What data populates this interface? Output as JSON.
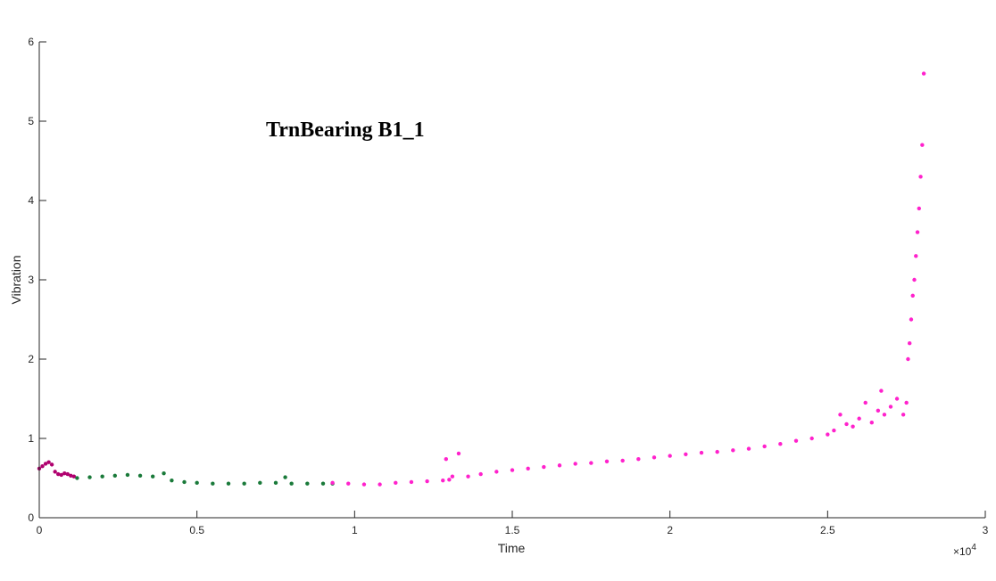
{
  "chart_data": {
    "type": "scatter",
    "title": "TrnBearing B1_1",
    "xlabel": "Time",
    "ylabel": "Vibration",
    "x_multiplier": "×10",
    "x_multiplier_exp": "4",
    "xlim": [
      0,
      30000
    ],
    "ylim": [
      0,
      6
    ],
    "grid": false,
    "x_ticks": [
      0,
      5000,
      10000,
      15000,
      20000,
      25000,
      30000
    ],
    "x_tick_labels": [
      "0",
      "0.5",
      "1",
      "1.5",
      "2",
      "2.5",
      "3"
    ],
    "y_ticks": [
      0,
      1,
      2,
      3,
      4,
      5,
      6
    ],
    "y_tick_labels": [
      "0",
      "1",
      "2",
      "3",
      "4",
      "5",
      "6"
    ],
    "colors": {
      "segment_early": "#b0006e",
      "segment_healthy": "#1a7a3a",
      "segment_degrading": "#ff22cc"
    },
    "series": [
      {
        "color_key": "segment_early",
        "x": [
          0,
          100,
          200,
          300,
          400,
          500,
          600,
          700,
          800,
          900,
          1000,
          1100
        ],
        "y": [
          0.62,
          0.65,
          0.68,
          0.7,
          0.67,
          0.58,
          0.55,
          0.54,
          0.56,
          0.55,
          0.53,
          0.52
        ]
      },
      {
        "color_key": "segment_healthy",
        "x": [
          1200,
          1600,
          2000,
          2400,
          2800,
          3200,
          3600,
          3950,
          4200,
          4600,
          5000,
          5500,
          6000,
          6500,
          7000,
          7500,
          7800,
          8000,
          8500,
          9000,
          9300
        ],
        "y": [
          0.5,
          0.51,
          0.52,
          0.53,
          0.54,
          0.53,
          0.52,
          0.56,
          0.47,
          0.45,
          0.44,
          0.43,
          0.43,
          0.43,
          0.44,
          0.44,
          0.51,
          0.43,
          0.43,
          0.43,
          0.43
        ]
      },
      {
        "color_key": "segment_degrading",
        "x": [
          9300,
          9800,
          10300,
          10800,
          11300,
          11800,
          12300,
          12800,
          12900,
          13000,
          13100,
          13300,
          13600,
          14000,
          14500,
          15000,
          15500,
          16000,
          16500,
          17000,
          17500,
          18000,
          18500,
          19000,
          19500,
          20000,
          20500,
          21000,
          21500,
          22000,
          22500,
          23000,
          23500,
          24000,
          24500,
          25000,
          25200,
          25400,
          25600,
          25800,
          26000,
          26200,
          26400,
          26600,
          26700,
          26800,
          27000,
          27200,
          27400,
          27500,
          27550,
          27600,
          27650,
          27700,
          27750,
          27800,
          27850,
          27900,
          27950,
          28000,
          28050
        ],
        "y": [
          0.44,
          0.43,
          0.42,
          0.42,
          0.44,
          0.45,
          0.46,
          0.47,
          0.74,
          0.48,
          0.52,
          0.81,
          0.52,
          0.55,
          0.58,
          0.6,
          0.62,
          0.64,
          0.66,
          0.68,
          0.69,
          0.71,
          0.72,
          0.74,
          0.76,
          0.78,
          0.8,
          0.82,
          0.83,
          0.85,
          0.87,
          0.9,
          0.93,
          0.97,
          1.0,
          1.05,
          1.1,
          1.3,
          1.18,
          1.15,
          1.25,
          1.45,
          1.2,
          1.35,
          1.6,
          1.3,
          1.4,
          1.5,
          1.3,
          1.45,
          2.0,
          2.2,
          2.5,
          2.8,
          3.0,
          3.3,
          3.6,
          3.9,
          4.3,
          4.7,
          5.6
        ]
      }
    ]
  }
}
